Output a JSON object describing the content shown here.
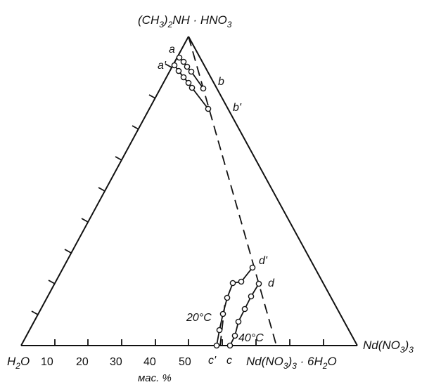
{
  "vertices": {
    "top": {
      "main": "(CH",
      "sub": "3",
      "rest": ")",
      "sub2": "2",
      "rest2": "NH · HNO",
      "sub3": "3"
    },
    "left": {
      "main": "H",
      "sub": "2",
      "rest": "O"
    },
    "right": {
      "main": "Nd(NO",
      "sub": "3",
      "rest": ")",
      "sub2": "3"
    }
  },
  "hydrate_label": {
    "main": "Nd(NO",
    "sub": "3",
    "rest": ")",
    "sub2": "3",
    "rest2": " · 6H",
    "sub3": "2",
    "rest3": "O"
  },
  "bottom_ticks": [
    "10",
    "20",
    "30",
    "40",
    "50"
  ],
  "unit": "мас. %",
  "point_labels": {
    "a": "a",
    "a_prime": "a'",
    "b": "b",
    "b_prime": "b'",
    "c": "c",
    "c_prime": "c'",
    "d": "d",
    "d_prime": "d'"
  },
  "temperatures": {
    "t20": "20°C",
    "t40": "40°C"
  }
}
